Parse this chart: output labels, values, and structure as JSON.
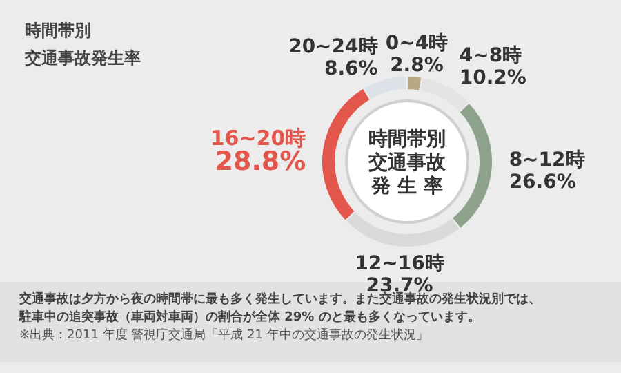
{
  "chart_data": {
    "type": "donut",
    "title": "時間帯別",
    "subtitle": "交通事故発生率",
    "categories": [
      "0~4時",
      "4~8時",
      "8~12時",
      "12~16時",
      "16~20時",
      "20~24時"
    ],
    "values": [
      2.8,
      10.2,
      26.6,
      23.7,
      28.8,
      8.6
    ],
    "value_labels": [
      "2.8%",
      "10.2%",
      "26.6%",
      "23.7%",
      "28.8%",
      "8.6%"
    ],
    "colors": [
      "#b9a886",
      "#e4e4e4",
      "#8da38c",
      "#d9dbdb",
      "#e2564c",
      "#dde2e8"
    ],
    "legend": false,
    "annotations": [
      "時間帯別",
      "交通事故",
      "発 生 率",
      "交通事故は夕方から夜の時間帯に最も多く発生しています。また交通事故の発生状況別では、",
      "駐車中の追突事故（車両対車両）の割合が全体 29% のと最も多くなっています。",
      "※出典：2011 年度 警視庁交通局「平成 21 年中の交通事故の発生状況」"
    ]
  }
}
